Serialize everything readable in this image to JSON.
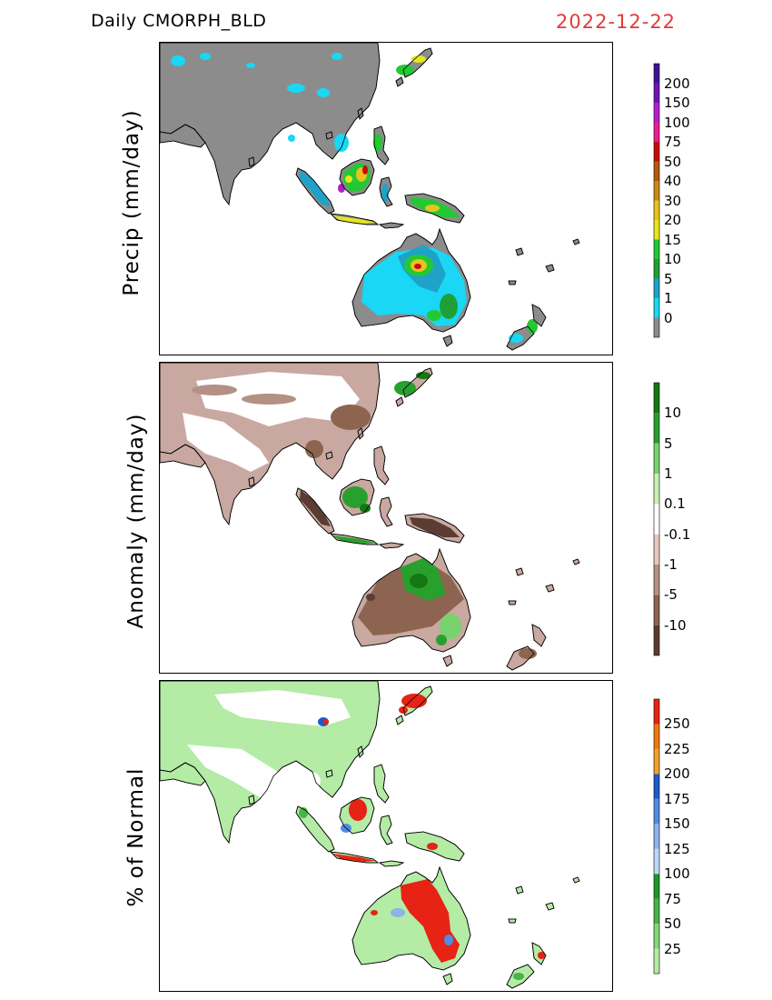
{
  "header": {
    "title_left": "Daily  CMORPH_BLD",
    "title_right": "2022-12-22"
  },
  "panels": [
    {
      "id": "precip",
      "ylabel": "Precip  (mm/day)",
      "land_color": "#8c8c8c",
      "colorbar": {
        "colors": [
          "#8c8c8c",
          "#19d7f5",
          "#1fa2c8",
          "#1ea036",
          "#24c832",
          "#e6e61e",
          "#e6c31e",
          "#c88c14",
          "#b45a0a",
          "#c80a0a",
          "#e61e96",
          "#b41ec8",
          "#6e14b4",
          "#3c1496"
        ],
        "labels": [
          "0",
          "1",
          "5",
          "10",
          "15",
          "20",
          "30",
          "40",
          "50",
          "75",
          "100",
          "150",
          "200"
        ]
      }
    },
    {
      "id": "anomaly",
      "ylabel": "Anomaly  (mm/day)",
      "land_color": "#c8a8a0",
      "colorbar": {
        "colors": [
          "#5a3c32",
          "#8c6450",
          "#b49184",
          "#e6c8c0",
          "#ffffff",
          "#c8f0b4",
          "#78d26e",
          "#28a02d",
          "#147814"
        ],
        "labels": [
          "-10",
          "-5",
          "-1",
          "-0.1",
          "0.1",
          "1",
          "5",
          "10"
        ]
      }
    },
    {
      "id": "pct",
      "ylabel": "% of Normal",
      "land_color": "#b4eba5",
      "colorbar": {
        "colors": [
          "#b4eba5",
          "#82d778",
          "#46b446",
          "#1e9628",
          "#bed7f5",
          "#8cb4eb",
          "#508ce6",
          "#1e5ac8",
          "#f0a032",
          "#f07814",
          "#e62314"
        ],
        "labels": [
          "25",
          "50",
          "75",
          "100",
          "125",
          "150",
          "175",
          "200",
          "225",
          "250"
        ]
      }
    }
  ]
}
